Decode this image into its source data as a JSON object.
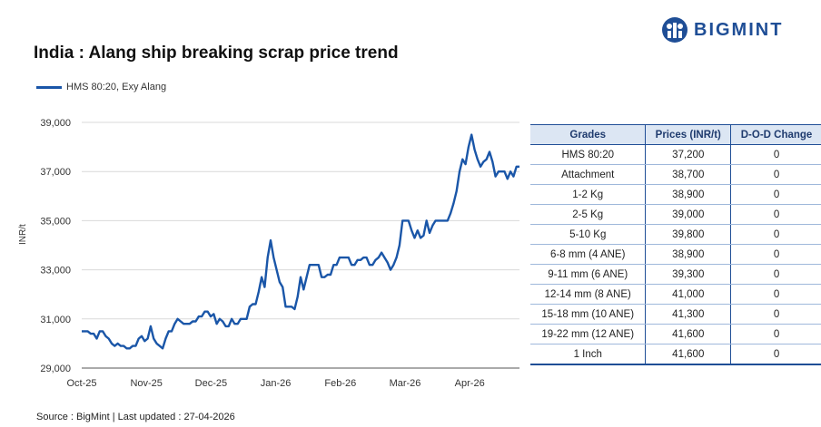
{
  "title": "India : Alang ship breaking scrap price trend",
  "brand": {
    "name": "BIGMINT",
    "color": "#1f4e96",
    "icon": "bigmint-logo-icon"
  },
  "source_note": "Source : BigMint | Last updated : 27-04-2026",
  "table": {
    "headers": [
      "Grades",
      "Prices (INR/t)",
      "D-O-D Change"
    ],
    "rows": [
      [
        "HMS 80:20",
        "37,200",
        "0"
      ],
      [
        "Attachment",
        "38,700",
        "0"
      ],
      [
        "1-2 Kg",
        "38,900",
        "0"
      ],
      [
        "2-5 Kg",
        "39,000",
        "0"
      ],
      [
        "5-10 Kg",
        "39,800",
        "0"
      ],
      [
        "6-8 mm (4 ANE)",
        "38,900",
        "0"
      ],
      [
        "9-11 mm (6 ANE)",
        "39,300",
        "0"
      ],
      [
        "12-14 mm (8 ANE)",
        "41,000",
        "0"
      ],
      [
        "15-18 mm (10 ANE)",
        "41,300",
        "0"
      ],
      [
        "19-22 mm (12 ANE)",
        "41,600",
        "0"
      ],
      [
        "1 Inch",
        "41,600",
        "0"
      ]
    ]
  },
  "chart_data": {
    "type": "line",
    "title": "India : Alang ship breaking scrap price trend",
    "ylabel": "INR/t",
    "xlabel": "",
    "ylim": [
      29000,
      39000
    ],
    "yticks": [
      "29,000",
      "31,000",
      "33,000",
      "35,000",
      "37,000",
      "39,000"
    ],
    "ytick_values": [
      29000,
      31000,
      33000,
      35000,
      37000,
      39000
    ],
    "xticks": [
      "Oct-25",
      "Nov-25",
      "Dec-25",
      "Jan-26",
      "Feb-26",
      "Mar-26",
      "Apr-26"
    ],
    "grid": "horizontal",
    "legend": "top-left",
    "color": "#1a56a8",
    "series": [
      {
        "name": "HMS 80:20, Exy Alang",
        "values": [
          30500,
          30500,
          30500,
          30400,
          30400,
          30200,
          30500,
          30500,
          30300,
          30200,
          30000,
          29900,
          30000,
          29900,
          29900,
          29800,
          29800,
          29900,
          29900,
          30200,
          30300,
          30100,
          30200,
          30700,
          30200,
          30000,
          29900,
          29800,
          30200,
          30500,
          30500,
          30800,
          31000,
          30900,
          30800,
          30800,
          30800,
          30900,
          30900,
          31100,
          31100,
          31300,
          31300,
          31100,
          31200,
          30800,
          31000,
          30900,
          30700,
          30700,
          31000,
          30800,
          30800,
          31000,
          31000,
          31000,
          31500,
          31600,
          31600,
          32100,
          32700,
          32300,
          33500,
          34200,
          33500,
          33000,
          32500,
          32300,
          31500,
          31500,
          31500,
          31400,
          31900,
          32700,
          32200,
          32700,
          33200,
          33200,
          33200,
          33200,
          32700,
          32700,
          32800,
          32800,
          33200,
          33200,
          33500,
          33500,
          33500,
          33500,
          33200,
          33200,
          33400,
          33400,
          33500,
          33500,
          33200,
          33200,
          33400,
          33500,
          33700,
          33500,
          33300,
          33000,
          33200,
          33500,
          34000,
          35000,
          35000,
          35000,
          34600,
          34300,
          34600,
          34300,
          34400,
          35000,
          34500,
          34800,
          35000,
          35000,
          35000,
          35000,
          35000,
          35300,
          35700,
          36200,
          37000,
          37500,
          37300,
          38000,
          38500,
          37900,
          37500,
          37200,
          37400,
          37500,
          37800,
          37400,
          36800,
          37000,
          37000,
          37000,
          36700,
          37000,
          36800,
          37200,
          37200
        ]
      }
    ]
  }
}
